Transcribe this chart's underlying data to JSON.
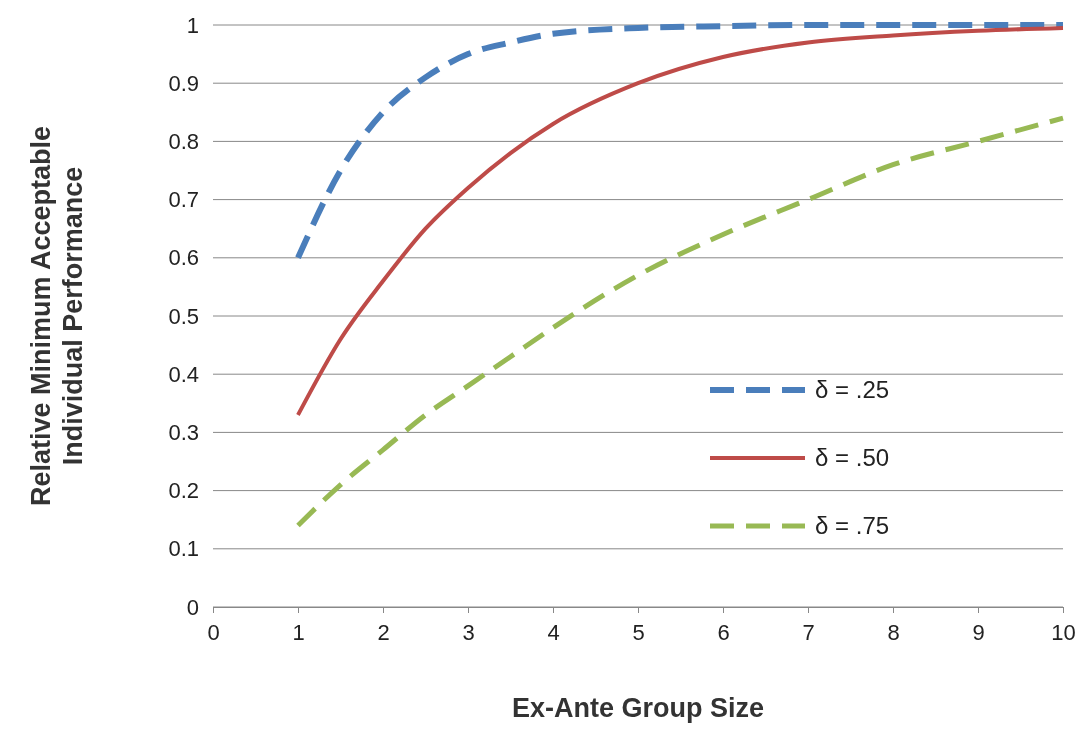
{
  "chart_data": {
    "type": "line",
    "xlabel": "Ex-Ante Group Size",
    "ylabel": "Relative Minimum Acceptable\nIndividual Performance",
    "x": [
      1,
      1.5,
      2,
      2.5,
      3,
      3.5,
      4,
      5,
      6,
      7,
      8,
      9,
      10
    ],
    "xlim": [
      0,
      10
    ],
    "xticks": [
      0,
      1,
      2,
      3,
      4,
      5,
      6,
      7,
      8,
      9,
      10
    ],
    "ylim": [
      0,
      1
    ],
    "yticks": [
      0,
      0.1,
      0.2,
      0.3,
      0.4,
      0.5,
      0.6,
      0.7,
      0.8,
      0.9,
      1
    ],
    "grid": "y",
    "legend": "right",
    "marker": "none",
    "series": [
      {
        "name": "δ = .25",
        "color": "#4a7ebb",
        "line_style": "dashed",
        "values": [
          0.6,
          0.75,
          0.85,
          0.91,
          0.95,
          0.97,
          0.985,
          0.995,
          0.998,
          1,
          1,
          1,
          1
        ]
      },
      {
        "name": "δ = .50",
        "color": "#be4b48",
        "line_style": "solid",
        "values": [
          0.33,
          0.46,
          0.56,
          0.65,
          0.72,
          0.78,
          0.83,
          0.9,
          0.945,
          0.97,
          0.982,
          0.99,
          0.995
        ]
      },
      {
        "name": "δ = .75",
        "color": "#98b954",
        "line_style": "dashed",
        "values": [
          0.14,
          0.21,
          0.27,
          0.33,
          0.38,
          0.43,
          0.48,
          0.57,
          0.64,
          0.7,
          0.76,
          0.8,
          0.84
        ]
      }
    ]
  }
}
